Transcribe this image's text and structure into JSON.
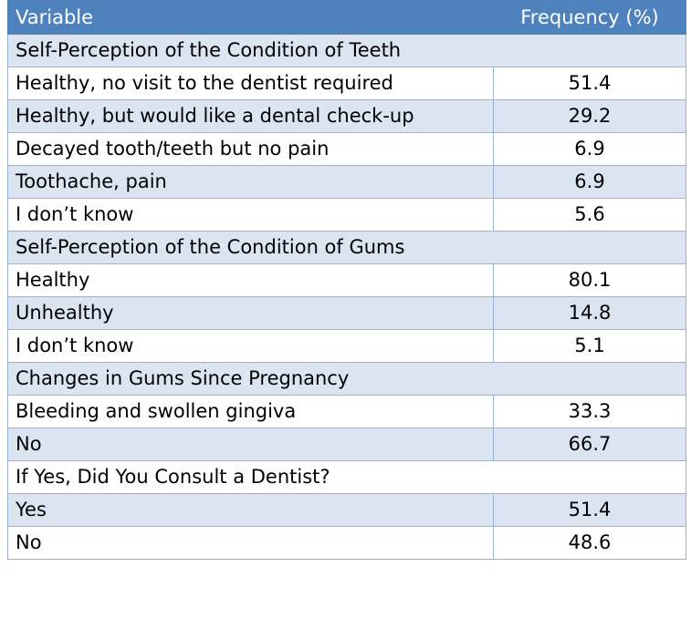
{
  "header": {
    "variable": "Variable",
    "frequency": "Frequency (%)"
  },
  "rows": [
    {
      "type": "section",
      "label": "Self-Perception of the Condition of Teeth",
      "value": ""
    },
    {
      "type": "item",
      "label": "Healthy, no visit to the dentist required",
      "value": "51.4"
    },
    {
      "type": "item",
      "label": "Healthy, but would like a dental check-up",
      "value": "29.2"
    },
    {
      "type": "item",
      "label": "Decayed tooth/teeth but no pain",
      "value": "6.9"
    },
    {
      "type": "item",
      "label": "Toothache, pain",
      "value": "6.9"
    },
    {
      "type": "item",
      "label": "I don’t know",
      "value": "5.6"
    },
    {
      "type": "section",
      "label": "Self-Perception of the Condition of Gums",
      "value": ""
    },
    {
      "type": "item",
      "label": "Healthy",
      "value": "80.1"
    },
    {
      "type": "item",
      "label": "Unhealthy",
      "value": "14.8"
    },
    {
      "type": "item",
      "label": "I don’t know",
      "value": "5.1"
    },
    {
      "type": "section",
      "label": "Changes in Gums Since Pregnancy",
      "value": ""
    },
    {
      "type": "item",
      "label": "Bleeding and swollen gingiva",
      "value": "33.3"
    },
    {
      "type": "item",
      "label": "No",
      "value": "66.7"
    },
    {
      "type": "section",
      "label": "If Yes, Did You Consult a Dentist?",
      "value": ""
    },
    {
      "type": "item",
      "label": "Yes",
      "value": "51.4"
    },
    {
      "type": "item",
      "label": "No",
      "value": "48.6"
    }
  ]
}
